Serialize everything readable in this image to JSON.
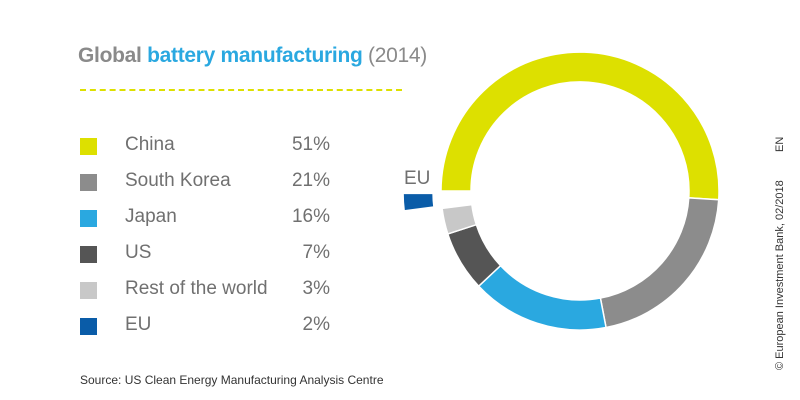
{
  "chart_data": {
    "type": "pie",
    "title_parts": [
      "Global",
      "battery manufacturing",
      "(2014)"
    ],
    "categories": [
      "China",
      "South Korea",
      "Japan",
      "US",
      "Rest of the world",
      "EU"
    ],
    "values": [
      51,
      21,
      16,
      7,
      3,
      2
    ],
    "labels": [
      "51%",
      "21%",
      "16%",
      "7%",
      "3%",
      "2%"
    ],
    "colors": [
      "#dde000",
      "#8c8c8c",
      "#2aa8e0",
      "#555555",
      "#c8c8c8",
      "#0a5ca8"
    ],
    "exploded_category": "EU",
    "exploded_label": "EU",
    "legend_position": "left",
    "source": "Source: US Clean Energy Manufacturing Analysis Centre"
  },
  "credit": "© European Investment Bank, 02/2018",
  "language": "EN"
}
